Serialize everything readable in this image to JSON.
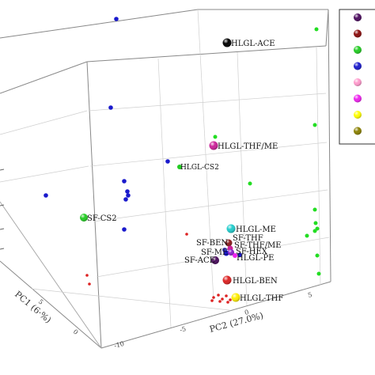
{
  "chart_data": {
    "type": "scatter",
    "subtype": "3d",
    "title": "",
    "xlabel": "PC2 (27.0%)",
    "ylabel": "PC1 (6·%)",
    "zlabel": "",
    "x_ticks": [
      "-10",
      "-5",
      "0",
      "5"
    ],
    "y_ticks": [
      "0",
      "5"
    ],
    "grid": true,
    "legend_position": "top-right",
    "legend_colors": [
      "#4b0c5e",
      "#8b0d0d",
      "#22cc22",
      "#1a1acc",
      "#ff99cc",
      "#ee22ee",
      "#ffff00",
      "#8a8000"
    ],
    "labeled_points": [
      {
        "label": "HLGL-ACE",
        "color": "#000000"
      },
      {
        "label": "HLGL-THF/ME",
        "color": "#cc2299"
      },
      {
        "label": "HLGL-CS2",
        "color": "#22cc22"
      },
      {
        "label": "SF-CS2",
        "color": "#22cc22"
      },
      {
        "label": "HLGL-ME",
        "color": "#22cccc"
      },
      {
        "label": "SF-THF",
        "color": "#8b1a1a"
      },
      {
        "label": "SF-BEN",
        "color": "#4444cc"
      },
      {
        "label": "SF-THF/ME",
        "color": "#cc2299"
      },
      {
        "label": "SF-ME",
        "color": "#1a1acc"
      },
      {
        "label": "SF-HEX",
        "color": "#8822cc"
      },
      {
        "label": "HLGL-PE",
        "color": "#ee22ee"
      },
      {
        "label": "SF-ACE",
        "color": "#4b0c5e"
      },
      {
        "label": "HLGL-BEN",
        "color": "#dd2222"
      },
      {
        "label": "HLGL-THF",
        "color": "#ffee00"
      }
    ],
    "unlabeled_series": [
      {
        "color": "#1a1acc",
        "count": 10
      },
      {
        "color": "#22cc22",
        "count": 11
      },
      {
        "color": "#dd2222",
        "count": 12
      }
    ]
  }
}
